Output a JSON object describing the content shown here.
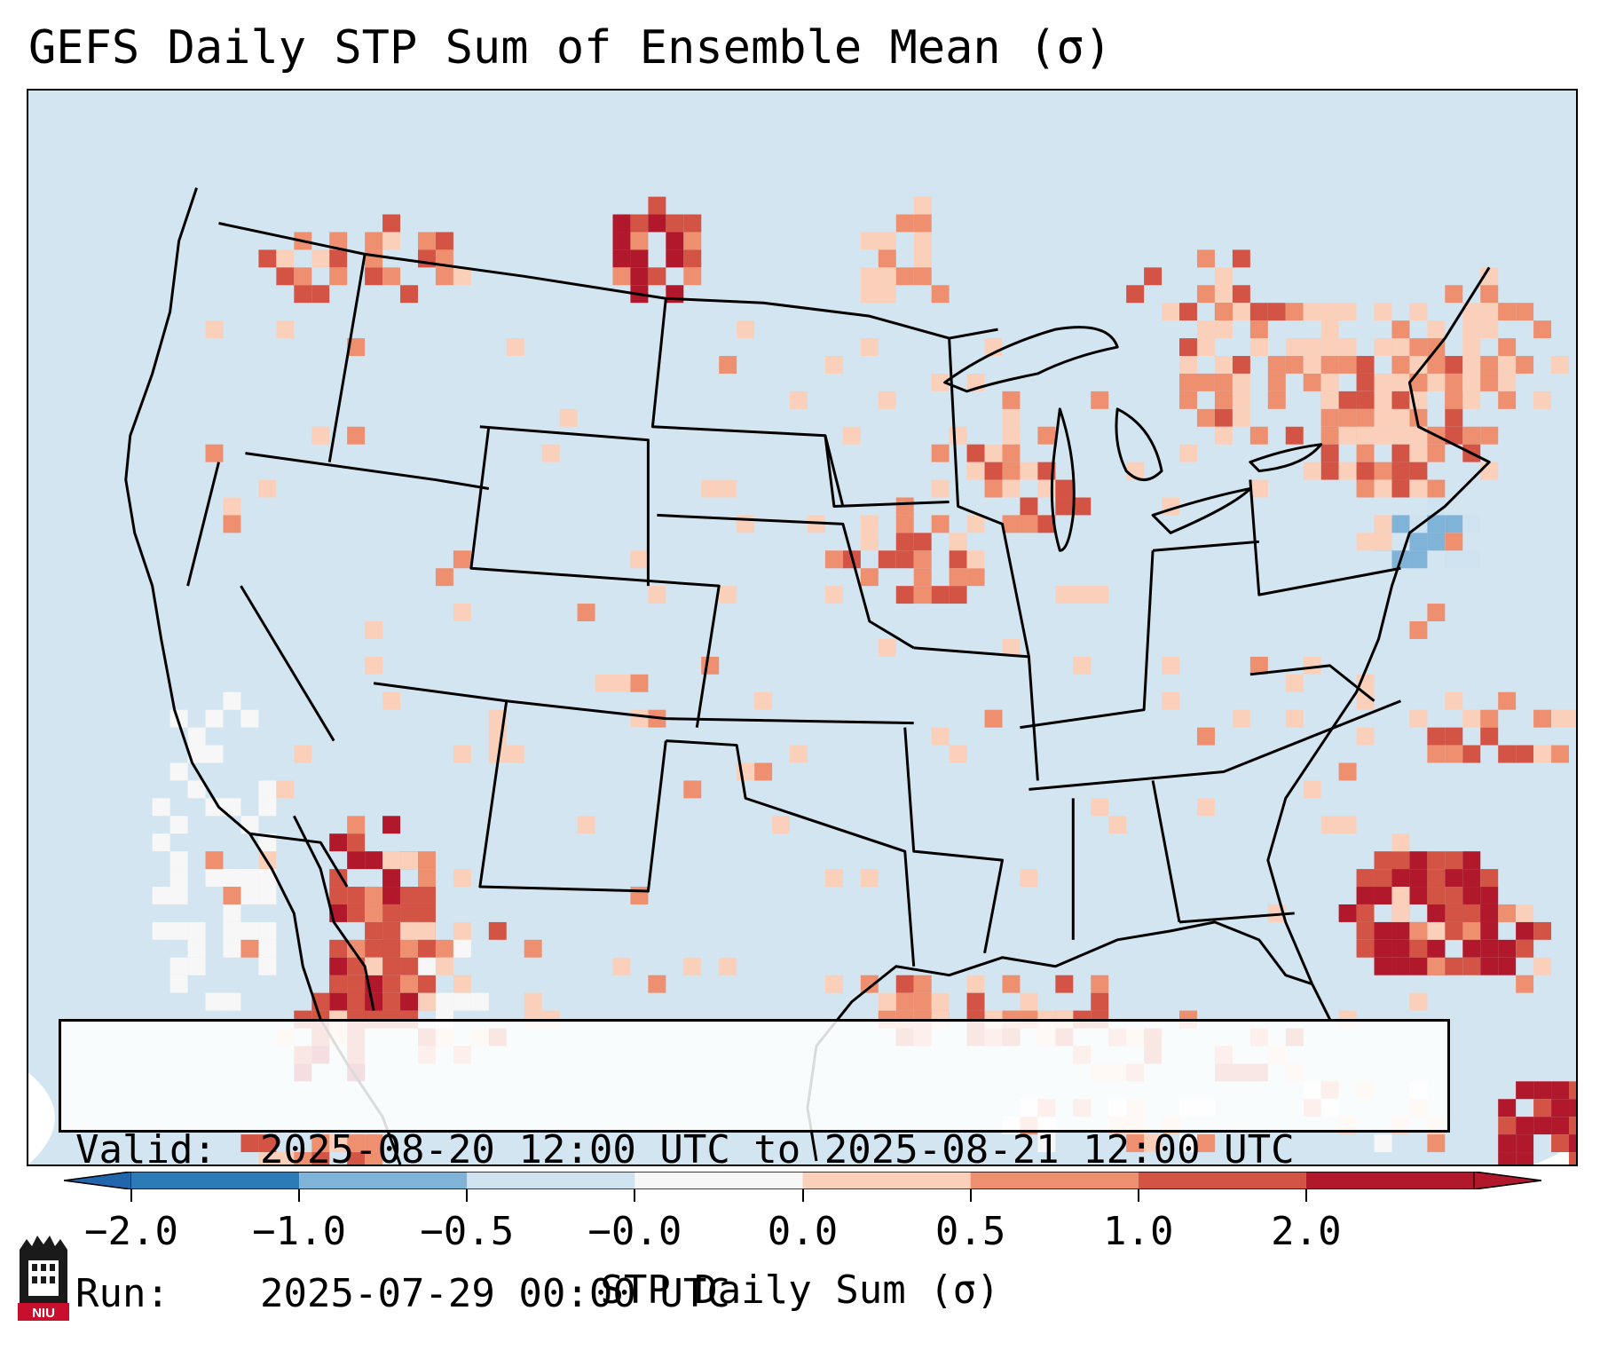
{
  "title": "GEFS Daily STP Sum of Ensemble Mean (σ)",
  "info": {
    "valid_label": "Valid:",
    "valid_value": "2025-08-20 12:00 UTC to 2025-08-21 12:00 UTC",
    "run_label": "Run:",
    "run_value": "2025-07-29 00:00 UTC"
  },
  "colorbar": {
    "label": "STP Daily Sum (σ)",
    "ticks": [
      "−2.0",
      "−1.0",
      "−0.5",
      "−0.0",
      "0.0",
      "0.5",
      "1.0",
      "2.0"
    ],
    "bins": [
      {
        "color": "#2c7bb6"
      },
      {
        "color": "#7fb3d8"
      },
      {
        "color": "#cfe2ef"
      },
      {
        "color": "#f7f7f7"
      },
      {
        "color": "#fbd0bb"
      },
      {
        "color": "#ee8f70"
      },
      {
        "color": "#d35445"
      },
      {
        "color": "#b2182b"
      }
    ],
    "extend_low_color": "#2166ac",
    "extend_high_color": "#b2182b"
  },
  "map": {
    "background_color": "#d3e5f0",
    "outside_color": "#ffffff",
    "line_color": "#000000"
  },
  "logo": {
    "text": "NIU"
  }
}
